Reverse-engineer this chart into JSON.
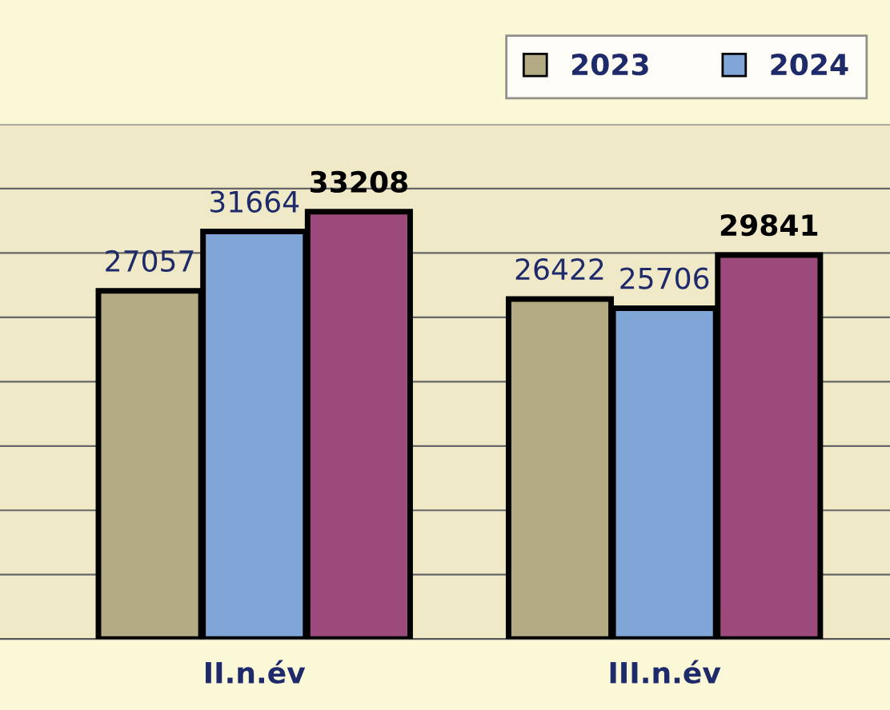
{
  "chart_data": {
    "type": "bar",
    "categories": [
      "II.n.év",
      "III.n.év"
    ],
    "series": [
      {
        "name": "2023",
        "color": "#b3ab84",
        "values": [
          27057,
          26422
        ]
      },
      {
        "name": "2024",
        "color": "#7fa6d6",
        "values": [
          31664,
          25706
        ]
      },
      {
        "color": "#9c4a7c",
        "values": [
          33208,
          29841
        ]
      }
    ],
    "ylim": [
      0,
      40000
    ],
    "yticks": [
      {
        "value": 0,
        "label": null
      },
      {
        "value": 5000,
        "label": null
      },
      {
        "value": 10000,
        "label": null
      },
      {
        "value": 15000,
        "label": null
      },
      {
        "value": 20000,
        "label": null
      },
      {
        "value": 25000,
        "label": null
      },
      {
        "value": 30000,
        "label": null
      },
      {
        "value": 35000,
        "label": null
      },
      {
        "value": 40000,
        "label": null
      }
    ],
    "tick_labels": "x",
    "grid": "y",
    "legend": "top right",
    "data_labels": true
  }
}
